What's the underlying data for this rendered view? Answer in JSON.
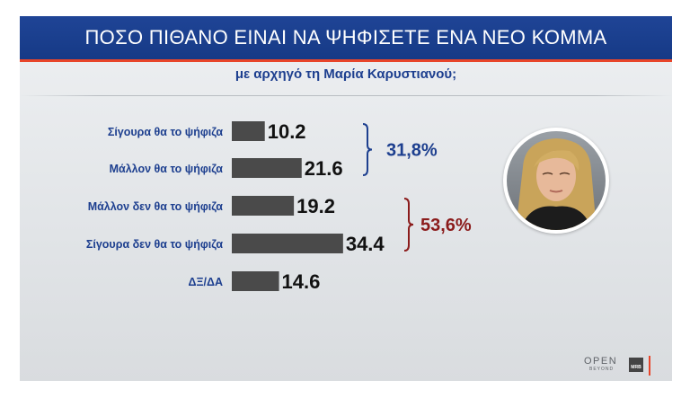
{
  "header": {
    "title": "ΠΟΣΟ ΠΙΘΑΝΟ ΕΙΝΑΙ ΝΑ ΨΗΦΙΣΕΤΕ ΕΝΑ ΝΕΟ ΚΟΜΜΑ",
    "subtitle": "με αρχηγό τη Μαρία Καρυστιανού;"
  },
  "colors": {
    "title_bg": "#1f4496",
    "accent": "#e8452a",
    "bar": "#4a4a4a",
    "label_text": "#1d3f8f",
    "positive_group": "#1d3f8f",
    "negative_group": "#8b1b1b"
  },
  "chart_data": {
    "type": "bar",
    "orientation": "horizontal",
    "categories": [
      "Σίγουρα θα το ψήφιζα",
      "Μάλλον θα το ψήφιζα",
      "Μάλλον δεν θα το ψήφιζα",
      "Σίγουρα δεν θα το ψήφιζα",
      "ΔΞ/ΔΑ"
    ],
    "values": [
      10.2,
      21.6,
      19.2,
      34.4,
      14.6
    ],
    "value_labels": [
      "10.2",
      "21.6",
      "19.2",
      "34.4",
      "14.6"
    ],
    "groups": [
      {
        "label": "31,8%",
        "from": 0,
        "to": 1,
        "color": "#1d3f8f"
      },
      {
        "label": "53,6%",
        "from": 2,
        "to": 3,
        "color": "#8b1b1b"
      }
    ],
    "grid": false,
    "legend": "none"
  },
  "branding": {
    "logo_text": "OPEN",
    "logo_sub": "BEYOND",
    "pollster": "MRB"
  },
  "icons": [
    "portrait-photo",
    "open-tv-logo",
    "mrb-logo"
  ]
}
